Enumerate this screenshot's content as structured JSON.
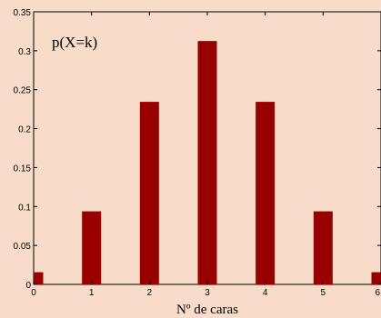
{
  "chart_data": {
    "type": "bar",
    "x": [
      0,
      1,
      2,
      3,
      4,
      5,
      6
    ],
    "values": [
      0.0156,
      0.0938,
      0.2344,
      0.3125,
      0.2344,
      0.0938,
      0.0156
    ],
    "xlim": [
      0,
      6
    ],
    "ylim": [
      0,
      0.35
    ],
    "xticks": [
      "0",
      "1",
      "2",
      "3",
      "4",
      "5",
      "6"
    ],
    "yticks": [
      "0",
      "0.05",
      "0.1",
      "0.15",
      "0.2",
      "0.25",
      "0.3",
      "0.35"
    ],
    "xlabel": "Nº de caras",
    "ylabel": "",
    "annotation": "p(X=k)",
    "bar_color": "#990000",
    "background_color": "#f8dcc9",
    "grid": false
  }
}
